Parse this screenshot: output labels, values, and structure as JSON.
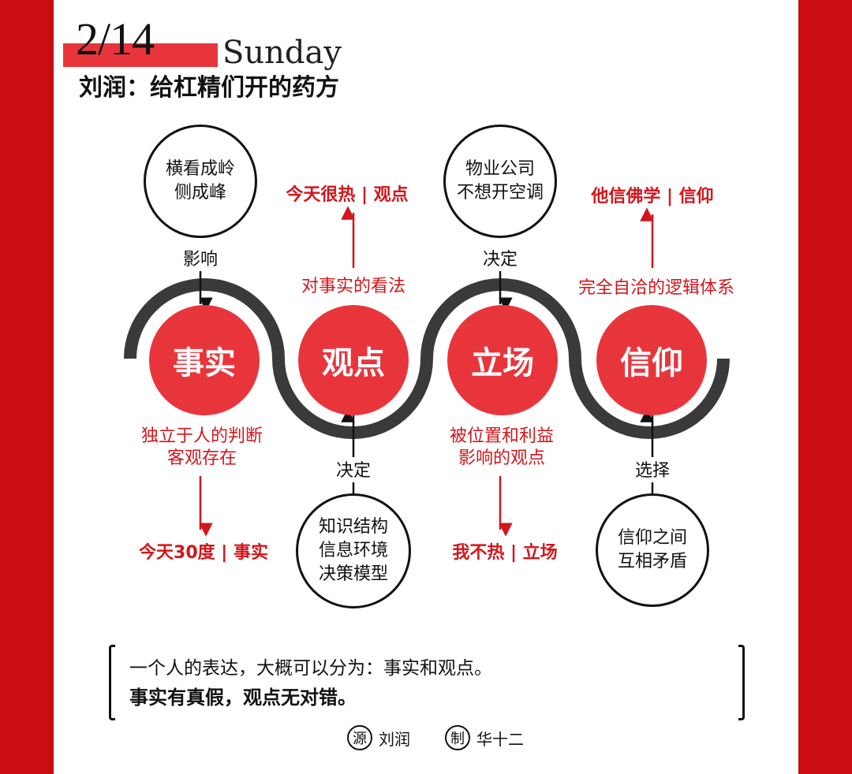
{
  "header": {
    "date": "2/14",
    "weekday": "Sunday",
    "title": "刘润：给杠精们开的药方"
  },
  "colors": {
    "brand_red": "#c90d12",
    "accent_red": "#e8353c",
    "text_red": "#d2161c",
    "wave_gray": "#3a3a3a"
  },
  "nodes": [
    {
      "label": "事实"
    },
    {
      "label": "观点"
    },
    {
      "label": "立场"
    },
    {
      "label": "信仰"
    }
  ],
  "top": {
    "fact_cause": {
      "circle": "横看成岭\n侧成峰",
      "verb": "影响"
    },
    "opinion": {
      "desc": "对事实的看法",
      "example": "今天很热 | 观点"
    },
    "stance_cause": {
      "circle": "物业公司\n不想开空调",
      "verb": "决定"
    },
    "belief": {
      "desc": "完全自洽的逻辑体系",
      "example": "他信佛学 | 信仰"
    }
  },
  "bottom": {
    "fact": {
      "desc": "独立于人的判断\n客观存在",
      "example": "今天30度 | 事实"
    },
    "opinion_cause": {
      "verb": "决定",
      "circle": "知识结构\n信息环境\n决策模型"
    },
    "stance": {
      "desc": "被位置和利益\n影响的观点",
      "example": "我不热 | 立场"
    },
    "belief_cause": {
      "verb": "选择",
      "circle": "信仰之间\n互相矛盾"
    }
  },
  "footer": {
    "line1": "一个人的表达，大概可以分为：事实和观点。",
    "line2": "事实有真假，观点无对错。"
  },
  "credits": {
    "source_seal": "源",
    "source_name": "刘润",
    "maker_seal": "制",
    "maker_name": "华十二"
  }
}
